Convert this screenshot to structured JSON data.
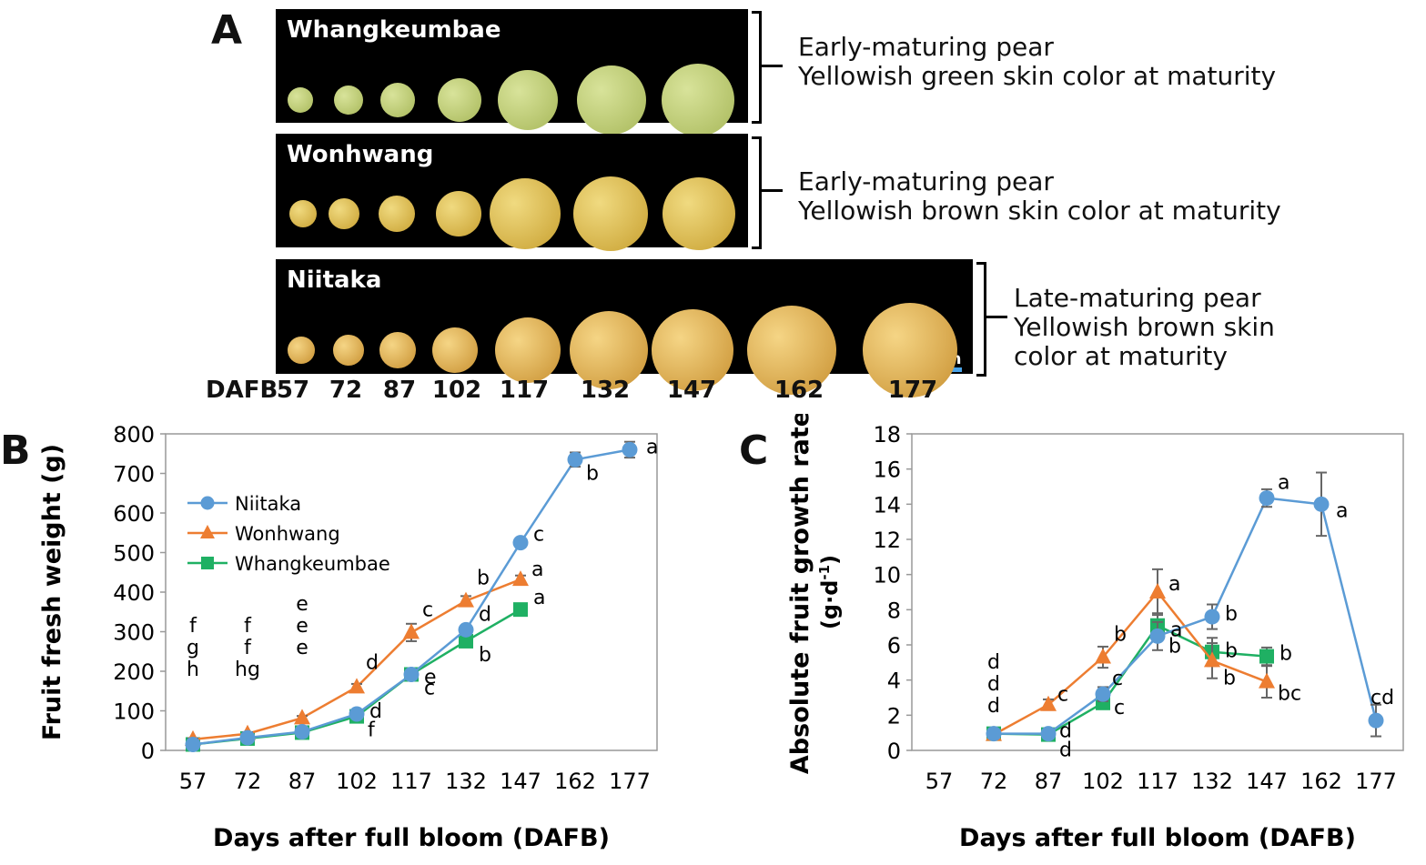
{
  "panel_a": {
    "letter": "A",
    "strips": [
      {
        "name": "Whangkeumbae",
        "desc": [
          "Early-maturing pear",
          "Yellowish green skin color at maturity"
        ]
      },
      {
        "name": "Wonhwang",
        "desc": [
          "Early-maturing pear",
          "Yellowish brown skin color at maturity"
        ]
      },
      {
        "name": "Niitaka",
        "desc": [
          "Late-maturing pear",
          "Yellowish brown skin",
          "color at maturity"
        ]
      }
    ],
    "scale_label": "10cm",
    "dafb_label": "DAFB",
    "dafb_values": [
      "57",
      "72",
      "87",
      "102",
      "117",
      "132",
      "147",
      "162",
      "177"
    ]
  },
  "colors": {
    "Niitaka": "#5b9bd5",
    "Wonhwang": "#ed7d31",
    "Whangkeumbae": "#1fb063"
  },
  "chart_data": [
    {
      "panel": "B",
      "type": "line",
      "xlabel": "Days after full bloom (DAFB)",
      "ylabel": "Fruit fresh weight (g)",
      "x_ticks": [
        57,
        72,
        87,
        102,
        117,
        132,
        147,
        162,
        177
      ],
      "ylim": [
        0,
        800
      ],
      "y_ticks": [
        0,
        100,
        200,
        300,
        400,
        500,
        600,
        700,
        800
      ],
      "legend": "upper-left",
      "series": [
        {
          "name": "Niitaka",
          "marker": "circle",
          "x": [
            57,
            72,
            87,
            102,
            117,
            132,
            147,
            162,
            177
          ],
          "y": [
            15,
            32,
            47,
            92,
            192,
            305,
            525,
            735,
            760
          ],
          "err": [
            3,
            4,
            5,
            6,
            8,
            10,
            10,
            18,
            20
          ],
          "letters": [
            "h",
            "hg",
            "e",
            "d",
            "c",
            "d",
            "c",
            "b",
            "a"
          ]
        },
        {
          "name": "Wonhwang",
          "marker": "triangle",
          "x": [
            57,
            72,
            87,
            102,
            117,
            132,
            147
          ],
          "y": [
            28,
            42,
            82,
            160,
            298,
            378,
            432
          ],
          "err": [
            3,
            4,
            5,
            8,
            22,
            12,
            10
          ],
          "letters": [
            "f",
            "f",
            "e",
            "d",
            "c",
            "b",
            "a"
          ]
        },
        {
          "name": "Whangkeumbae",
          "marker": "square",
          "x": [
            57,
            72,
            87,
            102,
            117,
            132,
            147
          ],
          "y": [
            15,
            30,
            45,
            86,
            192,
            276,
            356
          ],
          "err": [
            3,
            3,
            4,
            6,
            8,
            10,
            8
          ],
          "letters": [
            "g",
            "f",
            "e",
            "f",
            "e",
            "b",
            "a"
          ]
        }
      ]
    },
    {
      "panel": "C",
      "type": "line",
      "xlabel": "Days after full bloom (DAFB)",
      "ylabel": "Absolute fruit growth rate",
      "ylabel_unit": "(g·d",
      "ylabel_sup": "-1",
      "ylabel_close": ")",
      "x_ticks": [
        57,
        72,
        87,
        102,
        117,
        132,
        147,
        162,
        177
      ],
      "ylim": [
        0,
        18
      ],
      "y_ticks": [
        0,
        2,
        4,
        6,
        8,
        10,
        12,
        14,
        16,
        18
      ],
      "series": [
        {
          "name": "Niitaka",
          "marker": "circle",
          "x": [
            72,
            87,
            102,
            117,
            132,
            147,
            162,
            177
          ],
          "y": [
            0.95,
            0.95,
            3.2,
            6.5,
            7.6,
            14.35,
            14.0,
            1.7
          ],
          "err": [
            0.2,
            0.2,
            0.4,
            0.8,
            0.7,
            0.5,
            1.8,
            0.9
          ],
          "letters": [
            "d",
            "d",
            "c",
            "b",
            "b",
            "a",
            "a",
            "cd"
          ]
        },
        {
          "name": "Wonhwang",
          "marker": "triangle",
          "x": [
            72,
            87,
            102,
            117,
            132,
            147
          ],
          "y": [
            0.9,
            2.6,
            5.3,
            9.0,
            5.1,
            3.9
          ],
          "err": [
            0.2,
            0.3,
            0.6,
            1.3,
            1.0,
            0.9
          ],
          "letters": [
            "d",
            "c",
            "b",
            "a",
            "b",
            "bc"
          ]
        },
        {
          "name": "Whangkeumbae",
          "marker": "square",
          "x": [
            72,
            87,
            102,
            117,
            132,
            147
          ],
          "y": [
            0.95,
            0.9,
            2.7,
            7.1,
            5.6,
            5.35
          ],
          "err": [
            0.2,
            0.2,
            0.3,
            0.7,
            0.8,
            0.5
          ],
          "letters": [
            "d",
            "d",
            "c",
            "a",
            "b",
            "b"
          ]
        }
      ]
    }
  ]
}
